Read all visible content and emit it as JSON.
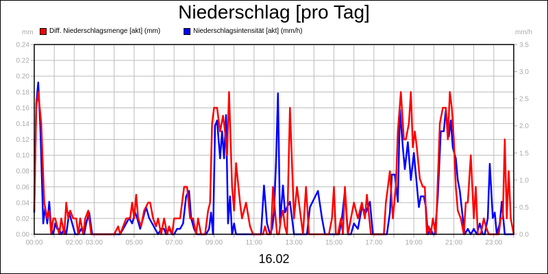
{
  "title": "Niederschlag [pro Tag]",
  "date_label": "16.02",
  "units": {
    "left": "mm",
    "right": "mm/h"
  },
  "legend": [
    {
      "label": "Diff. Niederschlagsmenge [akt] (mm)",
      "color": "#ff0000"
    },
    {
      "label": "Niederschlagsintensität [akt] (mm/h)",
      "color": "#0000ff"
    }
  ],
  "chart_data": {
    "type": "line",
    "title": "Niederschlag [pro Tag]",
    "xlabel": "16.02",
    "ylabel_left": "mm",
    "ylabel_right": "mm/h",
    "xlim_hours": [
      0,
      24
    ],
    "ylim_left": [
      0,
      0.24
    ],
    "ylim_right": [
      0,
      3.5
    ],
    "grid": true,
    "legend_position": "top",
    "x_tick_labels": [
      "00:00",
      "02:00",
      "03:00",
      "05:00",
      "07:00",
      "09:00",
      "11:00",
      "13:00",
      "15:00",
      "17:00",
      "19:00",
      "21:00",
      "23:00"
    ],
    "x_tick_hours": [
      0,
      2,
      3,
      5,
      7,
      9,
      11,
      13,
      15,
      17,
      19,
      21,
      23
    ],
    "y_left_ticks": [
      "0.00",
      "0.02",
      "0.04",
      "0.06",
      "0.08",
      "0.10",
      "0.12",
      "0.14",
      "0.16",
      "0.18",
      "0.20",
      "0.22",
      "0.24"
    ],
    "y_right_ticks": [
      "0.0",
      "0.5",
      "1.0",
      "1.5",
      "2.0",
      "2.5",
      "3.0",
      "3.5"
    ],
    "series": [
      {
        "name": "Diff. Niederschlagsmenge [akt] (mm)",
        "axis": "left",
        "color": "#ff0000",
        "x_hours": [
          0.0,
          0.1,
          0.2,
          0.35,
          0.5,
          0.65,
          0.75,
          0.85,
          0.95,
          1.05,
          1.15,
          1.25,
          1.35,
          1.5,
          1.6,
          1.7,
          1.8,
          1.95,
          2.1,
          2.2,
          2.3,
          2.45,
          2.55,
          2.7,
          2.85,
          3.0,
          4.0,
          4.2,
          4.3,
          4.45,
          4.6,
          4.8,
          4.9,
          5.0,
          5.1,
          5.2,
          5.35,
          5.5,
          5.7,
          5.8,
          5.95,
          6.1,
          6.2,
          6.35,
          6.5,
          6.65,
          6.75,
          6.9,
          7.0,
          7.15,
          7.3,
          7.5,
          7.65,
          7.8,
          7.95,
          8.1,
          8.2,
          8.35,
          8.45,
          8.55,
          8.7,
          8.8,
          8.9,
          9.0,
          9.15,
          9.3,
          9.45,
          9.55,
          9.65,
          9.75,
          9.9,
          10.0,
          10.1,
          10.3,
          10.4,
          10.6,
          10.8,
          10.95,
          11.1,
          11.25,
          11.45,
          11.55,
          11.65,
          11.75,
          11.85,
          11.95,
          12.05,
          12.15,
          12.25,
          12.35,
          12.45,
          12.55,
          12.65,
          12.8,
          13.0,
          13.15,
          13.3,
          13.45,
          13.6,
          13.75,
          13.9,
          14.3,
          14.45,
          14.6,
          14.75,
          14.9,
          15.0,
          15.1,
          15.2,
          15.35,
          15.45,
          15.55,
          15.7,
          15.85,
          16.0,
          16.2,
          16.4,
          16.55,
          16.65,
          16.85,
          16.95,
          17.05,
          17.2,
          17.35,
          17.5,
          17.6,
          17.7,
          17.8,
          17.95,
          18.1,
          18.2,
          18.35,
          18.5,
          18.6,
          18.75,
          18.85,
          18.95,
          19.05,
          19.15,
          19.3,
          19.45,
          19.55,
          19.65,
          19.75,
          19.85,
          19.95,
          20.1,
          20.2,
          20.3,
          20.45,
          20.6,
          20.7,
          20.8,
          20.9,
          21.0,
          21.1,
          21.2,
          21.35,
          21.5,
          21.6,
          21.7,
          21.85,
          22.0,
          22.1,
          22.2,
          22.35,
          22.5,
          22.6,
          22.75,
          22.85,
          22.95,
          23.05,
          23.15,
          23.25,
          23.35,
          23.45,
          23.55,
          23.65,
          23.75,
          23.85,
          24.0
        ],
        "values": [
          0.03,
          0.16,
          0.18,
          0.14,
          0.04,
          0.02,
          0.03,
          0.0,
          0.02,
          0.02,
          0.01,
          0.0,
          0.02,
          0.0,
          0.04,
          0.02,
          0.03,
          0.02,
          0.02,
          0.0,
          0.02,
          0.0,
          0.02,
          0.03,
          0.0,
          0.0,
          0.0,
          0.01,
          0.0,
          0.01,
          0.02,
          0.02,
          0.04,
          0.02,
          0.05,
          0.02,
          0.01,
          0.03,
          0.04,
          0.04,
          0.02,
          0.01,
          0.02,
          0.0,
          0.02,
          0.0,
          0.01,
          0.0,
          0.02,
          0.02,
          0.02,
          0.06,
          0.06,
          0.02,
          0.02,
          0.0,
          0.02,
          0.0,
          0.0,
          0.0,
          0.03,
          0.04,
          0.14,
          0.16,
          0.16,
          0.13,
          0.15,
          0.13,
          0.1,
          0.18,
          0.06,
          0.03,
          0.09,
          0.04,
          0.02,
          0.04,
          0.01,
          0.0,
          0.0,
          0.0,
          0.0,
          0.01,
          0.0,
          0.0,
          0.0,
          0.06,
          0.03,
          0.0,
          0.0,
          0.02,
          0.03,
          0.01,
          0.0,
          0.16,
          0.02,
          0.06,
          0.03,
          0.0,
          0.06,
          0.0,
          0.0,
          0.0,
          0.0,
          0.0,
          0.0,
          0.02,
          0.06,
          0.0,
          0.0,
          0.02,
          0.0,
          0.06,
          0.0,
          0.02,
          0.04,
          0.02,
          0.04,
          0.02,
          0.05,
          0.0,
          0.0,
          0.0,
          0.0,
          0.0,
          0.0,
          0.04,
          0.06,
          0.08,
          0.02,
          0.06,
          0.13,
          0.18,
          0.12,
          0.12,
          0.14,
          0.18,
          0.11,
          0.13,
          0.11,
          0.07,
          0.06,
          0.06,
          0.0,
          0.01,
          0.0,
          0.02,
          0.0,
          0.07,
          0.14,
          0.16,
          0.16,
          0.12,
          0.18,
          0.16,
          0.12,
          0.06,
          0.03,
          0.02,
          0.0,
          0.04,
          0.04,
          0.1,
          0.02,
          0.06,
          0.0,
          0.0,
          0.02,
          0.01,
          0.0,
          0.0,
          0.0,
          0.0,
          0.0,
          0.0,
          0.02,
          0.02,
          0.12,
          0.02,
          0.08,
          0.02,
          0.0,
          0.02,
          0.08,
          0.0,
          0.0,
          0.0,
          0.0,
          0.0,
          0.13,
          0.15,
          0.12,
          0.06,
          0.17,
          0.15,
          0.2,
          0.06,
          0.02
        ]
      },
      {
        "name": "Niederschlagsintensität [akt] (mm/h)",
        "axis": "right",
        "color": "#0000ff",
        "x_hours": [
          0.0,
          0.1,
          0.2,
          0.3,
          0.45,
          0.55,
          0.65,
          0.75,
          0.85,
          0.95,
          1.05,
          1.15,
          1.25,
          1.35,
          1.5,
          1.6,
          1.75,
          1.9,
          2.05,
          2.2,
          2.35,
          2.5,
          2.6,
          2.75,
          2.9,
          3.0,
          4.0,
          4.2,
          4.3,
          4.45,
          4.6,
          4.75,
          4.9,
          5.05,
          5.15,
          5.3,
          5.45,
          5.6,
          5.75,
          5.9,
          6.05,
          6.2,
          6.35,
          6.5,
          6.6,
          6.75,
          6.9,
          7.0,
          7.15,
          7.3,
          7.45,
          7.6,
          7.75,
          7.85,
          8.0,
          8.15,
          8.3,
          8.45,
          8.6,
          8.75,
          8.85,
          8.95,
          9.05,
          9.15,
          9.3,
          9.4,
          9.5,
          9.6,
          9.7,
          9.8,
          9.9,
          10.0,
          10.1,
          10.25,
          10.4,
          10.55,
          10.7,
          10.85,
          11.0,
          11.2,
          11.35,
          11.5,
          11.65,
          11.8,
          11.9,
          12.0,
          12.1,
          12.2,
          12.3,
          12.45,
          12.55,
          12.65,
          12.8,
          13.0,
          13.2,
          13.35,
          13.5,
          13.65,
          13.8,
          14.2,
          14.4,
          14.55,
          14.7,
          14.85,
          15.0,
          15.1,
          15.25,
          15.4,
          15.55,
          15.7,
          15.85,
          16.0,
          16.2,
          16.4,
          16.6,
          16.8,
          16.95,
          17.05,
          17.2,
          17.3,
          17.45,
          17.55,
          17.65,
          17.8,
          17.9,
          18.05,
          18.2,
          18.3,
          18.45,
          18.55,
          18.7,
          18.85,
          19.0,
          19.1,
          19.25,
          19.35,
          19.5,
          19.6,
          19.7,
          19.85,
          19.95,
          20.05,
          20.2,
          20.35,
          20.5,
          20.6,
          20.75,
          20.85,
          20.95,
          21.1,
          21.2,
          21.3,
          21.45,
          21.55,
          21.7,
          21.85,
          22.0,
          22.15,
          22.3,
          22.45,
          22.55,
          22.7,
          22.8,
          22.95,
          23.05,
          23.15,
          23.3,
          23.4,
          23.55,
          23.65,
          23.8,
          23.9,
          24.0
        ],
        "values": [
          0.4,
          2.4,
          2.8,
          2.0,
          0.2,
          0.5,
          0.2,
          0.6,
          0.1,
          0.0,
          0.2,
          0.1,
          0.1,
          0.0,
          0.1,
          0.0,
          0.4,
          0.2,
          0.0,
          0.0,
          0.1,
          0.0,
          0.2,
          0.4,
          0.0,
          0.0,
          0.0,
          0.0,
          0.0,
          0.1,
          0.2,
          0.3,
          0.2,
          0.4,
          0.3,
          0.1,
          0.3,
          0.5,
          0.3,
          0.2,
          0.1,
          0.0,
          0.1,
          0.1,
          0.0,
          0.1,
          0.0,
          0.0,
          0.1,
          0.1,
          0.2,
          0.7,
          0.8,
          0.3,
          0.1,
          0.0,
          0.0,
          0.0,
          0.0,
          0.1,
          0.4,
          0.0,
          2.0,
          2.1,
          1.4,
          1.9,
          1.4,
          2.2,
          0.2,
          0.7,
          0.0,
          0.2,
          0.0,
          0.0,
          0.0,
          0.0,
          0.0,
          0.0,
          0.0,
          0.0,
          0.0,
          0.9,
          0.2,
          0.0,
          0.1,
          0.4,
          1.3,
          2.6,
          0.2,
          0.9,
          0.4,
          0.5,
          0.6,
          0.0,
          0.0,
          0.0,
          0.0,
          0.0,
          0.5,
          0.8,
          0.3,
          0.0,
          0.0,
          0.0,
          0.0,
          0.0,
          0.0,
          0.3,
          0.8,
          0.0,
          0.0,
          0.2,
          0.1,
          0.5,
          0.4,
          0.6,
          0.0,
          0.0,
          0.0,
          0.0,
          0.0,
          0.0,
          0.0,
          0.4,
          1.1,
          1.1,
          0.6,
          2.3,
          1.6,
          1.2,
          1.7,
          1.0,
          1.5,
          1.1,
          0.5,
          0.7,
          0.7,
          0.5,
          0.0,
          0.1,
          0.0,
          0.0,
          0.7,
          1.9,
          1.9,
          2.3,
          1.8,
          2.1,
          1.6,
          1.4,
          1.0,
          0.8,
          0.3,
          0.0,
          0.1,
          0.0,
          0.1,
          0.0,
          0.2,
          0.0,
          0.0,
          0.3,
          1.3,
          0.3,
          0.4,
          0.0,
          0.2,
          0.6,
          0.0,
          0.0,
          0.0,
          0.0,
          0.0,
          0.0,
          1.0,
          0.3,
          0.1,
          0.0,
          2.3,
          2.8,
          2.2,
          0.7,
          1.7,
          1.7,
          2.2,
          1.1,
          0.0,
          0.0
        ]
      }
    ]
  }
}
